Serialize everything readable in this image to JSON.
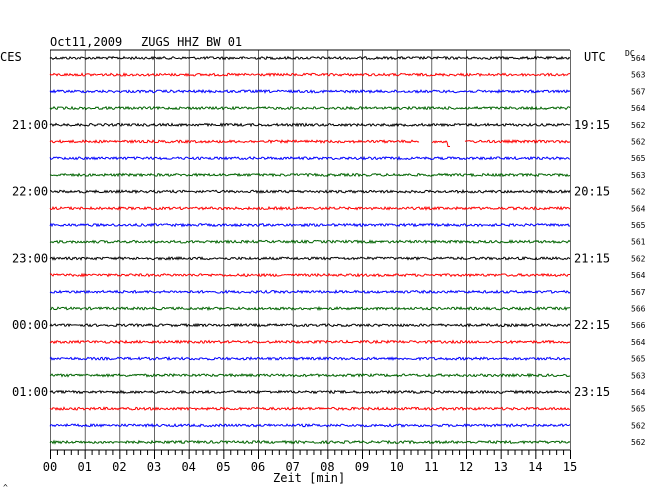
{
  "chart_data": {
    "type": "line",
    "header": {
      "date": "Oct11,2009",
      "station": "ZUGS HHZ BW 01"
    },
    "left_timezone": "CES",
    "right_timezone": "UTC",
    "offset_label": "DC",
    "xlabel": "Zeit [min]",
    "x_ticks": [
      "00",
      "01",
      "02",
      "03",
      "04",
      "05",
      "06",
      "07",
      "08",
      "09",
      "10",
      "11",
      "12",
      "13",
      "14",
      "15"
    ],
    "xlim": [
      0,
      15
    ],
    "grid": true,
    "trace_colors": [
      "#000000",
      "#ff0000",
      "#0000ff",
      "#006400"
    ],
    "left_hour_labels": [
      {
        "row": 4,
        "text": "21:00"
      },
      {
        "row": 8,
        "text": "22:00"
      },
      {
        "row": 12,
        "text": "23:00"
      },
      {
        "row": 16,
        "text": "00:00"
      },
      {
        "row": 20,
        "text": "01:00"
      }
    ],
    "right_hour_labels": [
      {
        "row": 4,
        "text": "19:15"
      },
      {
        "row": 8,
        "text": "20:15"
      },
      {
        "row": 12,
        "text": "21:15"
      },
      {
        "row": 16,
        "text": "22:15"
      },
      {
        "row": 20,
        "text": "23:15"
      }
    ],
    "dc_offsets": [
      564,
      563,
      567,
      564,
      562,
      562,
      565,
      563,
      562,
      564,
      565,
      561,
      562,
      564,
      567,
      566,
      566,
      564,
      565,
      563,
      564,
      565,
      562,
      562
    ],
    "gaps": [
      {
        "row": 5,
        "from_min": 10.65,
        "to_min": 11.0
      },
      {
        "row": 5,
        "from_min": 11.55,
        "to_min": 11.95
      }
    ],
    "spikes": [
      {
        "row": 5,
        "at_min": 11.5,
        "amplitude": 5
      }
    ]
  },
  "footer_mark": "^"
}
